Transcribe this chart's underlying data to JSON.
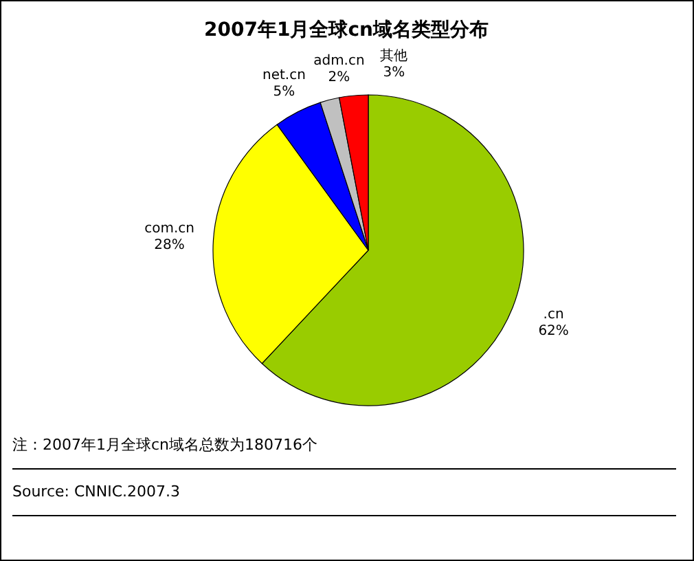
{
  "chart_data": {
    "type": "pie",
    "title": "2007年1月全球cn域名类型分布",
    "categories": [
      ".cn",
      "com.cn",
      "net.cn",
      "adm.cn",
      "其他"
    ],
    "values": [
      62,
      28,
      5,
      2,
      3
    ],
    "colors": [
      "#99cc00",
      "#ffff00",
      "#0000ff",
      "#c0c0c0",
      "#ff0000"
    ],
    "value_labels": [
      "62%",
      "28%",
      "5%",
      "2%",
      "3%"
    ],
    "annotations": [
      "注：2007年1月全球cn域名总数为180716个",
      "Source: CNNIC.2007.3"
    ]
  }
}
